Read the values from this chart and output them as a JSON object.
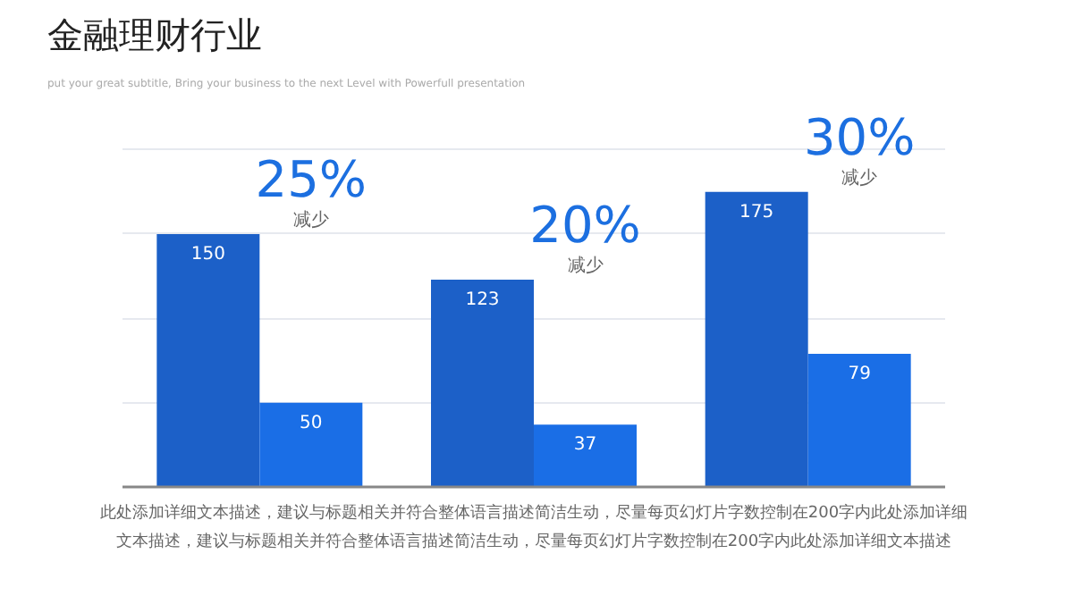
{
  "chart_data": {
    "type": "bar",
    "title": "金融理财行业",
    "subtitle": "put your great subtitle, Bring your business to the next Level with Powerfull presentation",
    "categories": [
      null,
      null,
      null
    ],
    "series": [
      {
        "color": "#1c60c8",
        "values": [
          150,
          123,
          175
        ]
      },
      {
        "color": "#1a6ee6",
        "values": [
          50,
          37,
          79
        ]
      }
    ],
    "yticks": [
      {
        "value": 0,
        "label": null
      },
      {
        "value": 50,
        "label": null
      },
      {
        "value": 100,
        "label": null
      },
      {
        "value": 150,
        "label": null
      },
      {
        "value": 200,
        "label": null
      }
    ],
    "grid": "y",
    "tick_labels": false,
    "data_labels": true,
    "annotations": [
      "25%",
      "减少",
      "20%",
      "减少",
      "30%",
      "减少",
      "此处添加详细文本描述，建议与标题相关并符合整体语言描述简洁生动，尽量每页幻灯片字数控制在200字内此处添加详细文本描述，建议与标题相关并符合整体语言描述简洁生动，尽量每页幻灯片字数控制在200字内此处添加详细文本描述"
    ]
  }
}
